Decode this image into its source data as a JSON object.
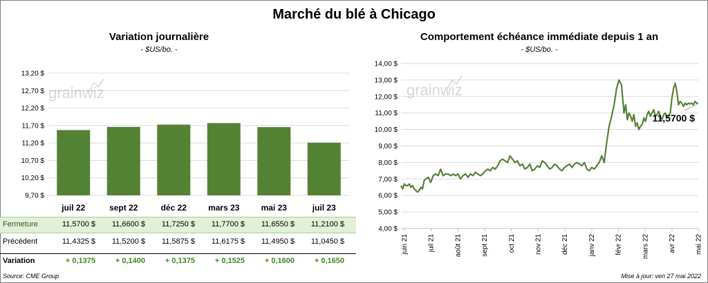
{
  "title": "Marché du blé à Chicago",
  "left_panel": {
    "title": "Variation  journalière",
    "subtitle": "- $US/bo. -"
  },
  "right_panel": {
    "title": "Comportement  échéance immédiate depuis 1 an",
    "subtitle": "- $US/bo. -"
  },
  "watermark": "grainwiz",
  "table": {
    "rows": [
      {
        "label": "Fermeture",
        "values": [
          "11,5700  $",
          "11,6600  $",
          "11,7250  $",
          "11,7700  $",
          "11,6550  $",
          "11,2100  $"
        ]
      },
      {
        "label": "Précédent",
        "values": [
          "11,4325  $",
          "11,5200  $",
          "11,5875  $",
          "11,6175  $",
          "11,4950  $",
          "11,0450  $"
        ]
      },
      {
        "label": "Variation",
        "values": [
          "+ 0,1375",
          "+ 0,1400",
          "+ 0,1375",
          "+ 0,1525",
          "+ 0,1600",
          "+ 0,1650"
        ]
      }
    ]
  },
  "colors": {
    "bar": "#548235",
    "line": "#548235",
    "grid": "#d9d9d9",
    "table_highlight": "#e2efd9",
    "variation_text": "#3a8a22"
  },
  "footer": {
    "source": "Source: CME Group",
    "updated": "Mise à jour: ven 27 mai 2022"
  },
  "chart_data": [
    {
      "type": "bar",
      "categories": [
        "juil 22",
        "sept 22",
        "déc 22",
        "mars 23",
        "mai 23",
        "juil 23"
      ],
      "values": [
        11.57,
        11.66,
        11.725,
        11.77,
        11.655,
        11.21
      ],
      "ylim": [
        9.7,
        13.2
      ],
      "yticks": [
        9.7,
        10.2,
        10.7,
        11.2,
        11.7,
        12.2,
        12.7,
        13.2
      ],
      "ytick_labels": [
        "9,70 $",
        "10,20 $",
        "10,70 $",
        "11,20 $",
        "11,70 $",
        "12,20 $",
        "12,70 $",
        "13,20 $"
      ],
      "grid": true
    },
    {
      "type": "line",
      "ylim": [
        4.0,
        14.0
      ],
      "yticks": [
        4,
        5,
        6,
        7,
        8,
        9,
        10,
        11,
        12,
        13,
        14
      ],
      "ytick_labels": [
        "4,00 $",
        "5,00 $",
        "6,00 $",
        "7,00 $",
        "8,00 $",
        "9,00 $",
        "10,00 $",
        "11,00 $",
        "12,00 $",
        "13,00 $",
        "14,00 $"
      ],
      "xticks": [
        "juin 21",
        "juil 21",
        "août 21",
        "sept 21",
        "oct 21",
        "nov 21",
        "déc 21",
        "janv 22",
        "févr 22",
        "mars 22",
        "avr 22",
        "mai 22"
      ],
      "last_label": "11,5700 $",
      "x": [
        0,
        2,
        4,
        6,
        8,
        10,
        12,
        14,
        16,
        18,
        20,
        22,
        24,
        26,
        28,
        30,
        33,
        36,
        39,
        42,
        45,
        48,
        51,
        54,
        57,
        60,
        63,
        66,
        69,
        72,
        75,
        78,
        81,
        84,
        87,
        90,
        93,
        96,
        99,
        102,
        105,
        108,
        111,
        114,
        117,
        120,
        123,
        126,
        129,
        132,
        135,
        138,
        141,
        144,
        147,
        150,
        153,
        156,
        159,
        162,
        165,
        168,
        171,
        174,
        177,
        180,
        183,
        186,
        189,
        192,
        195,
        198,
        201,
        204,
        207,
        210,
        213,
        216,
        219,
        222,
        225,
        228,
        231,
        234,
        237,
        240,
        243,
        246,
        249,
        252,
        255,
        258,
        261,
        264,
        267,
        270,
        272,
        274,
        276,
        278,
        280,
        282,
        284,
        286,
        288,
        290,
        292,
        294,
        296,
        298,
        300,
        302,
        304,
        306,
        308,
        310,
        312,
        314,
        316,
        318,
        320,
        322,
        324,
        326,
        328,
        330,
        332,
        334,
        336,
        338,
        340,
        342,
        344,
        346,
        348,
        350,
        352,
        354,
        356,
        358,
        360
      ],
      "y": [
        6.6,
        6.4,
        6.7,
        6.6,
        6.6,
        6.7,
        6.5,
        6.6,
        6.4,
        6.3,
        6.2,
        6.3,
        6.5,
        6.4,
        6.9,
        7.0,
        7.1,
        6.8,
        7.2,
        7.3,
        7.2,
        7.6,
        7.2,
        7.3,
        7.3,
        7.2,
        7.3,
        7.2,
        7.3,
        7.0,
        7.2,
        7.3,
        7.1,
        7.3,
        7.2,
        7.4,
        7.3,
        7.2,
        7.3,
        7.5,
        7.6,
        7.5,
        7.7,
        7.6,
        7.8,
        8.1,
        8.2,
        8.1,
        8.0,
        8.4,
        8.2,
        8.0,
        8.1,
        7.8,
        7.9,
        7.6,
        7.7,
        7.9,
        7.5,
        7.6,
        7.8,
        7.7,
        8.1,
        8.0,
        7.8,
        7.6,
        7.7,
        7.9,
        7.8,
        7.6,
        7.5,
        7.7,
        7.8,
        7.9,
        7.7,
        7.9,
        8.0,
        7.9,
        7.8,
        8.0,
        7.6,
        7.5,
        7.7,
        7.6,
        7.8,
        8.0,
        8.4,
        8.0,
        9.2,
        10.2,
        10.8,
        11.5,
        12.5,
        13.0,
        12.7,
        11.0,
        11.5,
        10.6,
        11.0,
        10.8,
        10.5,
        10.9,
        10.2,
        10.4,
        10.0,
        10.2,
        10.3,
        10.7,
        10.5,
        10.9,
        11.1,
        10.8,
        11.0,
        11.2,
        10.8,
        10.9,
        11.1,
        10.8,
        10.6,
        10.9,
        11.0,
        10.7,
        10.8,
        11.0,
        11.9,
        12.5,
        12.8,
        12.3,
        11.5,
        11.7,
        11.6,
        11.4,
        11.6,
        11.5,
        11.6,
        11.55,
        11.6,
        11.5,
        11.7,
        11.6,
        11.57
      ]
    }
  ]
}
